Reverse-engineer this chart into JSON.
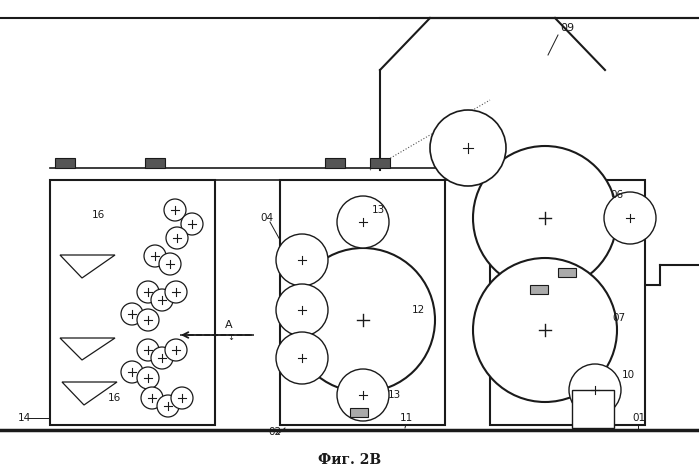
{
  "title": "Фиг. 2В",
  "bg_color": "#f0f0f0",
  "line_color": "#1a1a1a",
  "fig_width": 6.99,
  "fig_height": 4.74
}
